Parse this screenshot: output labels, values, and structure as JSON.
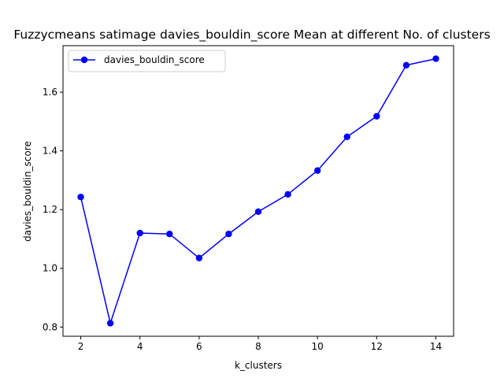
{
  "chart_data": {
    "type": "line",
    "title": "Fuzzycmeans satimage davies_bouldin_score Mean at different No. of clusters",
    "xlabel": "k_clusters",
    "ylabel": "davies_bouldin_score",
    "x": [
      2,
      3,
      4,
      5,
      6,
      7,
      8,
      9,
      10,
      11,
      12,
      13,
      14
    ],
    "series": [
      {
        "name": "davies_bouldin_score",
        "values": [
          1.243,
          0.813,
          1.12,
          1.117,
          1.035,
          1.117,
          1.193,
          1.252,
          1.333,
          1.448,
          1.518,
          1.692,
          1.714
        ],
        "color": "#0000ff",
        "marker": "circle"
      }
    ],
    "xlim": [
      1.4,
      14.6
    ],
    "ylim": [
      0.7685,
      1.7585
    ],
    "xticks": [
      2,
      4,
      6,
      8,
      10,
      12,
      14
    ],
    "yticks": [
      0.8,
      1.0,
      1.2,
      1.4,
      1.6
    ],
    "xtick_labels": [
      "2",
      "4",
      "6",
      "8",
      "10",
      "12",
      "14"
    ],
    "ytick_labels": [
      "0.8",
      "1.0",
      "1.2",
      "1.4",
      "1.6"
    ],
    "grid": false,
    "legend_position": "upper-left"
  }
}
